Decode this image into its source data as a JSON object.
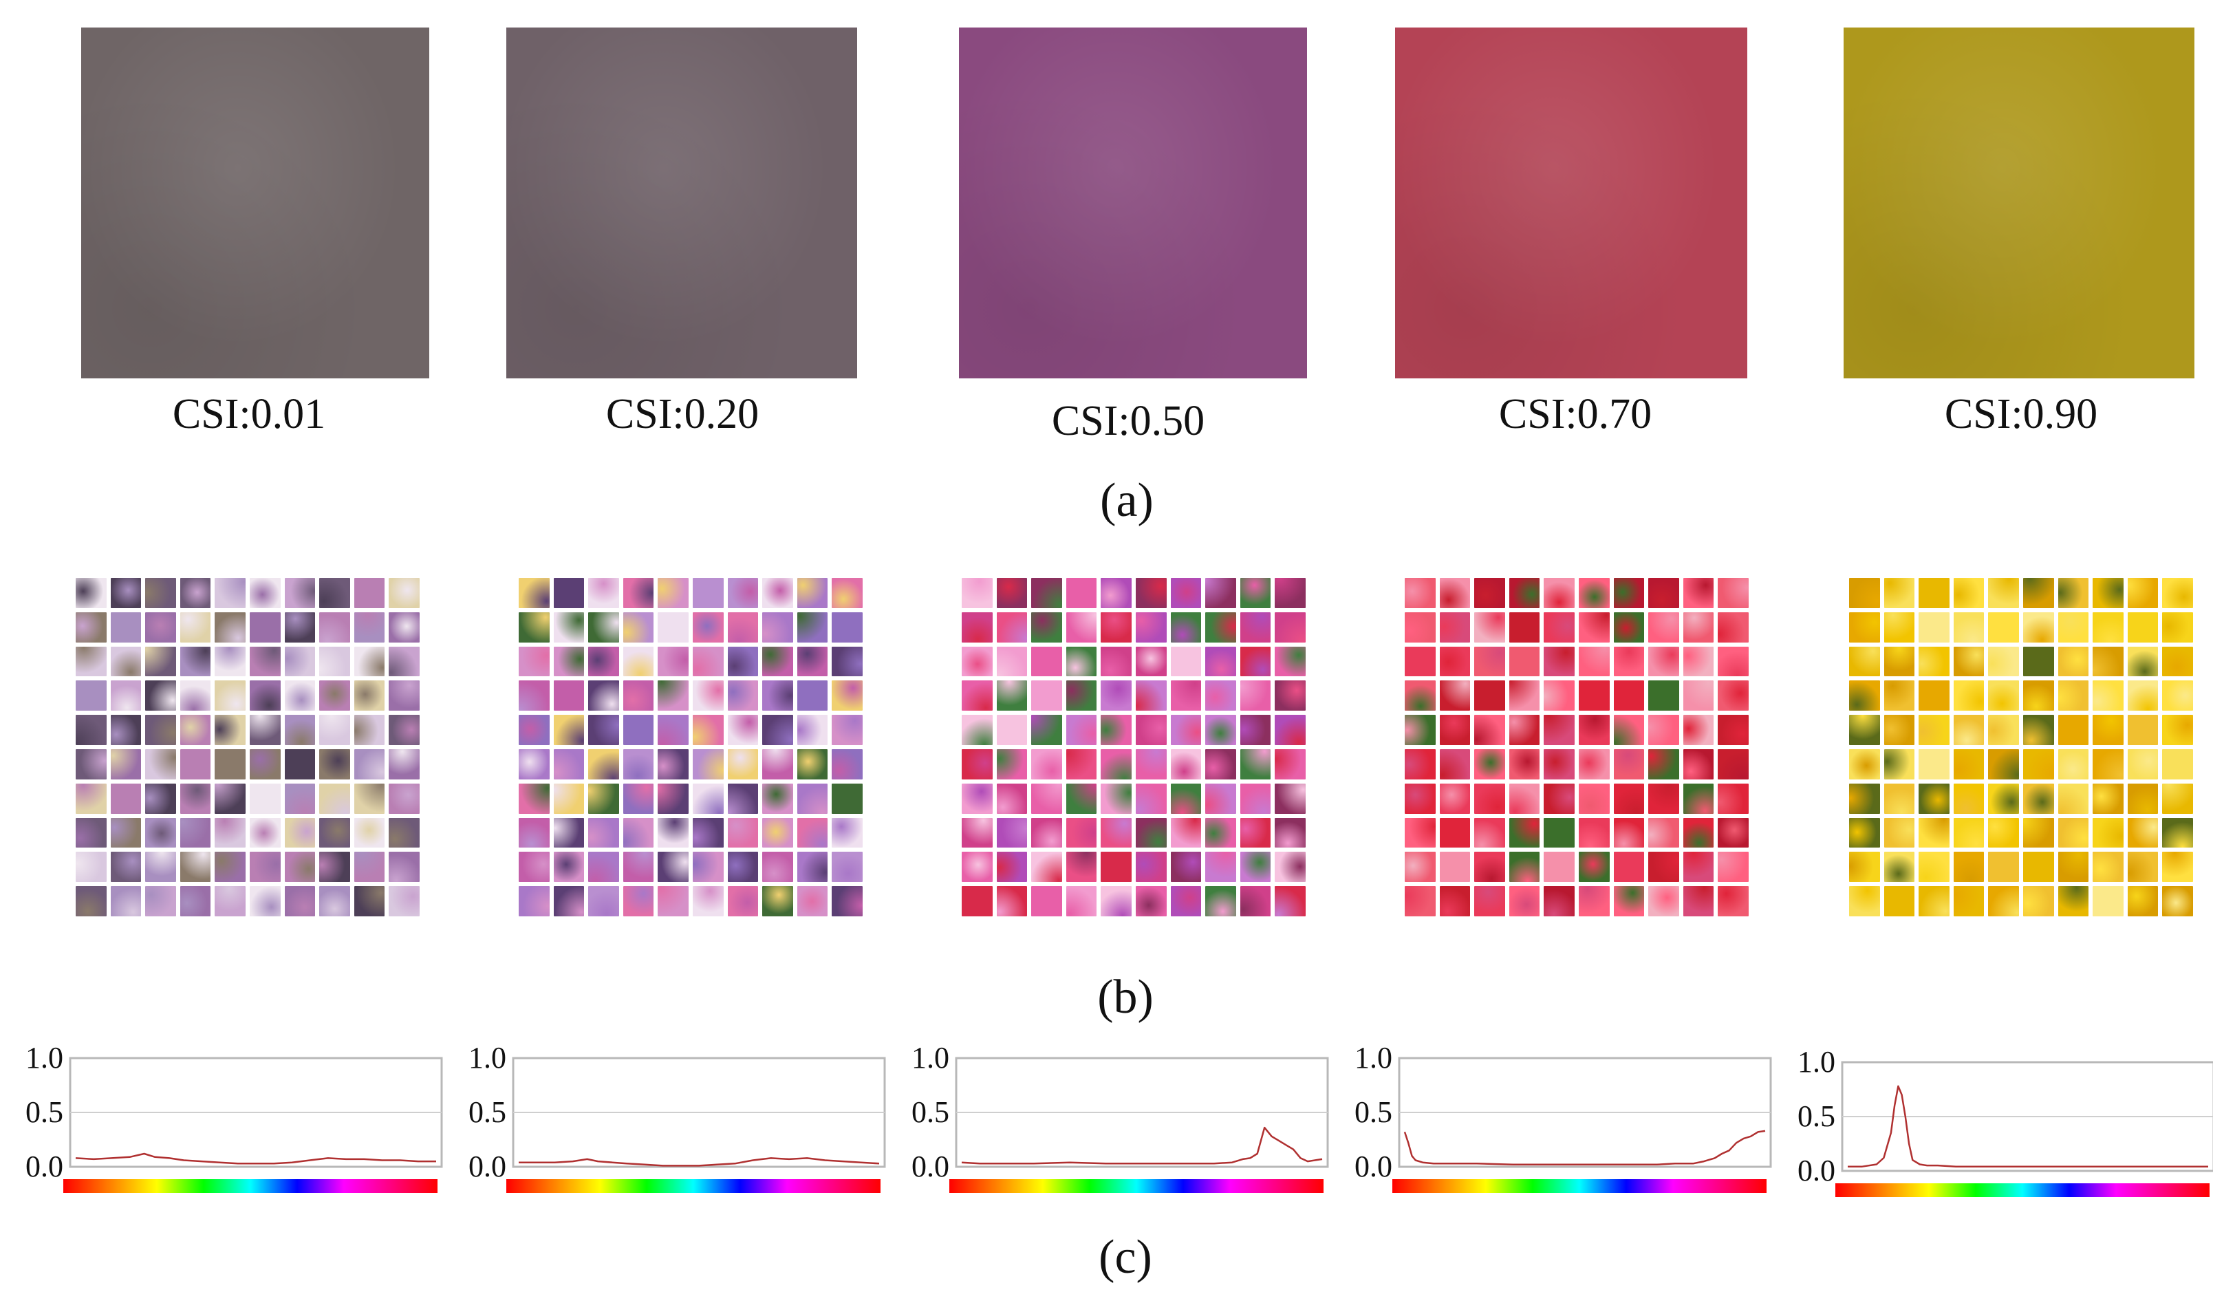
{
  "panels": {
    "a": {
      "label": "(a)",
      "items": [
        {
          "csi": "CSI:0.01",
          "color": "#6f6566"
        },
        {
          "csi": "CSI:0.20",
          "color": "#6f6168"
        },
        {
          "csi": "CSI:0.50",
          "color": "#8a4a7f"
        },
        {
          "csi": "CSI:0.70",
          "color": "#b44355"
        },
        {
          "csi": "CSI:0.90",
          "color": "#ae981c"
        }
      ]
    },
    "b": {
      "label": "(b)",
      "grid_rows": 10,
      "grid_cols": 10,
      "palettes": [
        [
          "#a88fc0",
          "#d9c8df",
          "#6e5a78",
          "#b97fb3",
          "#efe6ef",
          "#4d3f57",
          "#c9a3cf",
          "#8a7a6a",
          "#e0d2a8",
          "#9a6fa8"
        ],
        [
          "#8f6fbf",
          "#c35ea9",
          "#d690c8",
          "#efe0ef",
          "#5b3f74",
          "#a978c8",
          "#e26fa8",
          "#f0d070",
          "#3f6a35",
          "#b98fd0"
        ],
        [
          "#d0408a",
          "#e85fa8",
          "#b04cb8",
          "#f29ccf",
          "#8c2f5f",
          "#ea4f86",
          "#c87ad0",
          "#3f7f3f",
          "#d82a4a",
          "#f7c3e0"
        ],
        [
          "#e0243a",
          "#f05a70",
          "#c81e2e",
          "#f590aa",
          "#ea3a5a",
          "#b81830",
          "#f2b0c0",
          "#d84a7a",
          "#3b6f2b",
          "#ff6080"
        ],
        [
          "#f2c400",
          "#f7d41a",
          "#e7a800",
          "#f9e05a",
          "#d89c00",
          "#fbe98a",
          "#e8b800",
          "#5a6a1a",
          "#f0c030",
          "#ffe040"
        ]
      ]
    },
    "c": {
      "label": "(c)",
      "y_ticks": [
        "1.0",
        "0.5",
        "0.0"
      ],
      "ylim": [
        0,
        1
      ],
      "hue_bar_colors": [
        "#ff0000",
        "#ff8000",
        "#ffff00",
        "#00ff00",
        "#00ffff",
        "#0000ff",
        "#ff00ff",
        "#ff0080",
        "#ff0000"
      ],
      "line_color": "#b03030"
    }
  },
  "chart_data": [
    {
      "type": "line",
      "panel": "c1",
      "x": [
        0,
        0.05,
        0.1,
        0.15,
        0.19,
        0.22,
        0.26,
        0.3,
        0.35,
        0.4,
        0.45,
        0.5,
        0.55,
        0.6,
        0.65,
        0.7,
        0.75,
        0.8,
        0.85,
        0.9,
        0.95,
        1.0
      ],
      "values": [
        0.08,
        0.07,
        0.08,
        0.09,
        0.12,
        0.09,
        0.08,
        0.06,
        0.05,
        0.04,
        0.03,
        0.03,
        0.03,
        0.04,
        0.06,
        0.08,
        0.07,
        0.07,
        0.06,
        0.06,
        0.05,
        0.05
      ],
      "ylim": [
        0,
        1
      ]
    },
    {
      "type": "line",
      "panel": "c2",
      "x": [
        0,
        0.05,
        0.1,
        0.15,
        0.19,
        0.22,
        0.26,
        0.3,
        0.35,
        0.4,
        0.45,
        0.5,
        0.55,
        0.6,
        0.65,
        0.7,
        0.75,
        0.8,
        0.85,
        0.9,
        0.95,
        1.0
      ],
      "values": [
        0.04,
        0.04,
        0.04,
        0.05,
        0.07,
        0.05,
        0.04,
        0.03,
        0.02,
        0.01,
        0.01,
        0.01,
        0.02,
        0.03,
        0.06,
        0.08,
        0.07,
        0.08,
        0.06,
        0.05,
        0.04,
        0.03
      ],
      "ylim": [
        0,
        1
      ]
    },
    {
      "type": "line",
      "panel": "c3",
      "x": [
        0,
        0.05,
        0.1,
        0.2,
        0.3,
        0.4,
        0.5,
        0.6,
        0.7,
        0.75,
        0.78,
        0.8,
        0.82,
        0.84,
        0.86,
        0.88,
        0.9,
        0.92,
        0.94,
        0.96,
        0.98,
        1.0
      ],
      "values": [
        0.04,
        0.03,
        0.03,
        0.03,
        0.04,
        0.03,
        0.03,
        0.03,
        0.03,
        0.04,
        0.07,
        0.08,
        0.12,
        0.36,
        0.28,
        0.24,
        0.2,
        0.16,
        0.08,
        0.05,
        0.06,
        0.07
      ],
      "ylim": [
        0,
        1
      ]
    },
    {
      "type": "line",
      "panel": "c4",
      "x": [
        0,
        0.01,
        0.02,
        0.03,
        0.05,
        0.08,
        0.12,
        0.2,
        0.3,
        0.4,
        0.5,
        0.6,
        0.7,
        0.75,
        0.8,
        0.83,
        0.86,
        0.88,
        0.9,
        0.92,
        0.94,
        0.96,
        0.98,
        1.0
      ],
      "values": [
        0.32,
        0.22,
        0.1,
        0.06,
        0.04,
        0.03,
        0.03,
        0.03,
        0.02,
        0.02,
        0.02,
        0.02,
        0.02,
        0.03,
        0.03,
        0.05,
        0.08,
        0.12,
        0.15,
        0.22,
        0.26,
        0.28,
        0.32,
        0.33
      ],
      "ylim": [
        0,
        1
      ]
    },
    {
      "type": "line",
      "panel": "c5",
      "x": [
        0,
        0.04,
        0.08,
        0.1,
        0.12,
        0.13,
        0.14,
        0.15,
        0.16,
        0.17,
        0.18,
        0.2,
        0.22,
        0.25,
        0.3,
        0.4,
        0.5,
        0.6,
        0.7,
        0.8,
        0.9,
        1.0
      ],
      "values": [
        0.04,
        0.04,
        0.06,
        0.12,
        0.35,
        0.6,
        0.78,
        0.7,
        0.5,
        0.25,
        0.1,
        0.06,
        0.05,
        0.05,
        0.04,
        0.04,
        0.04,
        0.04,
        0.04,
        0.04,
        0.04,
        0.04
      ],
      "ylim": [
        0,
        1
      ]
    }
  ]
}
